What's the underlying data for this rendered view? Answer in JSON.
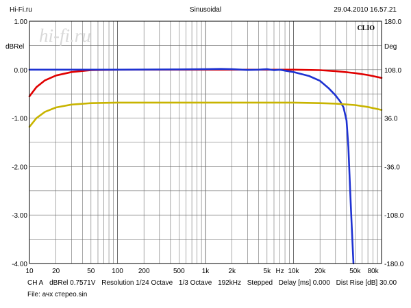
{
  "header": {
    "left": "Hi-Fi.ru",
    "center": "Sinusoidal",
    "right": "29.04.2010 16.57.21"
  },
  "watermark": "hi-fi.ru",
  "brand": "CLIO",
  "footer": {
    "channel": "CH A",
    "unit_value": "dBRel 0.7571V",
    "resolution": "Resolution 1/24 Octave",
    "octave": "1/3 Octave",
    "rate": "192kHz",
    "mode": "Stepped",
    "delay": "Delay [ms] 0.000",
    "dist_rise": "Dist Rise [dB] 30.00",
    "file": "File: ачх стерео.sin"
  },
  "chart_data": {
    "type": "line",
    "x_scale": "log",
    "xlim": [
      10,
      100000
    ],
    "ylim_left": [
      -4.0,
      1.0
    ],
    "ylim_right": [
      -180,
      180
    ],
    "ylabel_left": "dBRel",
    "ylabel_right": "Deg",
    "xlabel": "Hz",
    "grid": true,
    "left_ticks": [
      {
        "value": 1.0,
        "label": "1.00"
      },
      {
        "value": 0.0,
        "label": "0.00"
      },
      {
        "value": -1.0,
        "label": "-1.00"
      },
      {
        "value": -2.0,
        "label": "-2.00"
      },
      {
        "value": -3.0,
        "label": "-3.00"
      },
      {
        "value": -4.0,
        "label": "-4.00"
      }
    ],
    "right_ticks": [
      {
        "value": 180,
        "label": "180.0"
      },
      {
        "value": 108,
        "label": "108.0"
      },
      {
        "value": 36,
        "label": "36.0"
      },
      {
        "value": -36,
        "label": "-36.0"
      },
      {
        "value": -108,
        "label": "-108.0"
      },
      {
        "value": -180,
        "label": "-180.0"
      }
    ],
    "x_ticks": [
      {
        "value": 10,
        "label": "10"
      },
      {
        "value": 20,
        "label": "20"
      },
      {
        "value": 50,
        "label": "50"
      },
      {
        "value": 100,
        "label": "100"
      },
      {
        "value": 200,
        "label": "200"
      },
      {
        "value": 500,
        "label": "500"
      },
      {
        "value": 1000,
        "label": "1k"
      },
      {
        "value": 2000,
        "label": "2k"
      },
      {
        "value": 5000,
        "label": "5k"
      },
      {
        "value": 10000,
        "label": "10k"
      },
      {
        "value": 20000,
        "label": "20k"
      },
      {
        "value": 50000,
        "label": "50k"
      },
      {
        "value": 80000,
        "label": "80k"
      }
    ],
    "series": [
      {
        "color": "#e00000",
        "x": [
          10,
          12,
          15,
          20,
          30,
          50,
          100,
          1000,
          5000,
          10000,
          20000,
          30000,
          50000,
          70000,
          100000
        ],
        "y": [
          -0.55,
          -0.36,
          -0.22,
          -0.12,
          -0.05,
          -0.01,
          0.0,
          0.0,
          0.0,
          0.0,
          -0.01,
          -0.03,
          -0.07,
          -0.11,
          -0.17
        ]
      },
      {
        "color": "#1e32d2",
        "x": [
          10,
          50,
          100,
          500,
          1000,
          1500,
          2000,
          3000,
          4000,
          5000,
          6000,
          7000,
          8000,
          10000,
          15000,
          20000,
          25000,
          30000,
          34000,
          37000,
          40000,
          42000,
          44000,
          46000,
          48000
        ],
        "y": [
          0.0,
          0.0,
          0.0,
          0.005,
          0.01,
          0.015,
          0.01,
          -0.005,
          0.0,
          0.01,
          -0.01,
          0.0,
          -0.02,
          -0.05,
          -0.13,
          -0.23,
          -0.38,
          -0.53,
          -0.66,
          -0.78,
          -1.05,
          -1.6,
          -2.5,
          -3.3,
          -4.0
        ]
      },
      {
        "color": "#c8b400",
        "x": [
          10,
          12,
          15,
          20,
          30,
          50,
          100,
          1000,
          10000,
          20000,
          30000,
          50000,
          70000,
          100000
        ],
        "y": [
          -1.18,
          -1.0,
          -0.87,
          -0.78,
          -0.72,
          -0.69,
          -0.68,
          -0.68,
          -0.68,
          -0.69,
          -0.7,
          -0.73,
          -0.77,
          -0.83
        ]
      }
    ]
  }
}
